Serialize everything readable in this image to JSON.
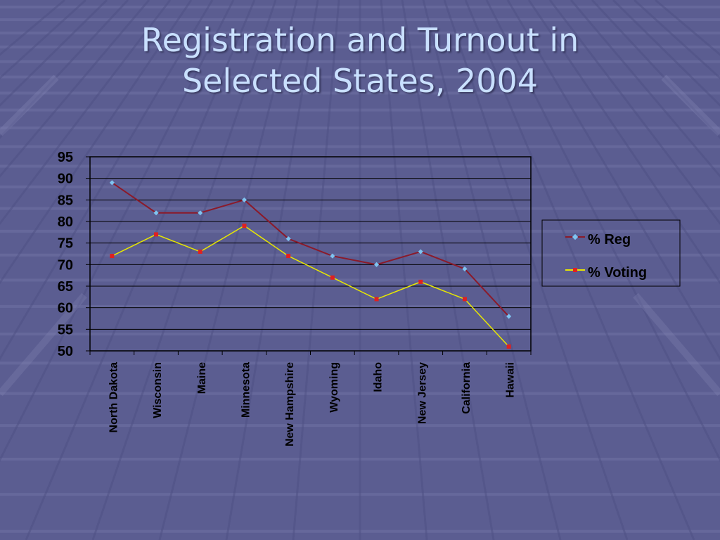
{
  "slide": {
    "title_line1": "Registration and Turnout in",
    "title_line2": "Selected States, 2004"
  },
  "colors": {
    "background": "#5b5d91",
    "title": "#c9e0ff",
    "plot_border": "#000000",
    "reg_line": "#8b1a2a",
    "reg_marker": "#7fc4f0",
    "vote_line": "#e8e800",
    "vote_marker": "#e02020",
    "axis_text": "#000000"
  },
  "chart_data": {
    "type": "line",
    "categories": [
      "North Dakota",
      "Wisconsin",
      "Maine",
      "Minnesota",
      "New Hampshire",
      "Wyoming",
      "Idaho",
      "New Jersey",
      "California",
      "Hawaii"
    ],
    "series": [
      {
        "name": "% Reg",
        "values": [
          89,
          82,
          82,
          85,
          76,
          72,
          70,
          73,
          69,
          58
        ]
      },
      {
        "name": "% Voting",
        "values": [
          72,
          77,
          73,
          79,
          72,
          67,
          62,
          66,
          62,
          51
        ]
      }
    ],
    "ylim": [
      50,
      95
    ],
    "yticks": [
      "50",
      "55",
      "60",
      "65",
      "70",
      "75",
      "80",
      "85",
      "90",
      "95"
    ],
    "grid": true,
    "legend_position": "right"
  }
}
